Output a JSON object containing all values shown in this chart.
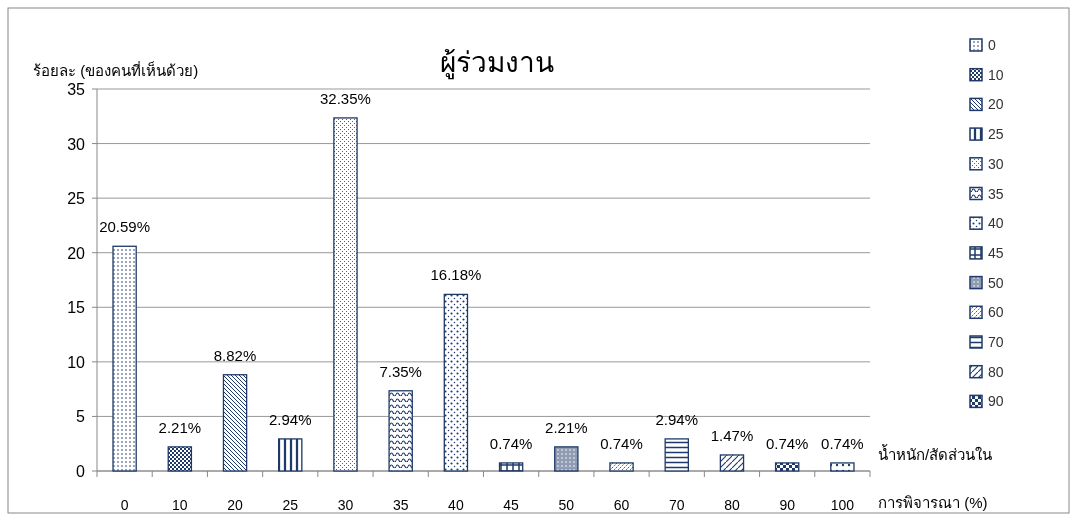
{
  "chart_data": {
    "type": "bar",
    "title": "ผู้ร่วมงาน",
    "ylabel": "ร้อยละ (ของคนที่เห็นด้วย)",
    "xlabel": "น้ำหนัก/สัดส่วนใน\nการพิจารณา (%)",
    "categories": [
      "0",
      "10",
      "20",
      "25",
      "30",
      "35",
      "40",
      "45",
      "50",
      "60",
      "70",
      "80",
      "90",
      "100"
    ],
    "ylim": [
      0,
      35
    ],
    "yticks": [
      0,
      5,
      10,
      15,
      20,
      25,
      30,
      35
    ],
    "grid": "y",
    "legend": "right",
    "series": [
      {
        "name": "0",
        "color": "#1f3a68",
        "values": [
          20.59,
          null,
          null,
          null,
          null,
          null,
          null,
          null,
          null,
          null,
          null,
          null,
          null,
          null
        ],
        "value_labels": [
          "20.59%",
          null,
          null,
          null,
          null,
          null,
          null,
          null,
          null,
          null,
          null,
          null,
          null,
          null
        ]
      },
      {
        "name": "10",
        "color": "#1f3a68",
        "values": [
          null,
          2.21,
          null,
          null,
          null,
          null,
          null,
          null,
          null,
          null,
          null,
          null,
          null,
          null
        ],
        "value_labels": [
          null,
          "2.21%",
          null,
          null,
          null,
          null,
          null,
          null,
          null,
          null,
          null,
          null,
          null,
          null
        ]
      },
      {
        "name": "20",
        "color": "#1f3a68",
        "values": [
          null,
          null,
          8.82,
          null,
          null,
          null,
          null,
          null,
          null,
          null,
          null,
          null,
          null,
          null
        ],
        "value_labels": [
          null,
          null,
          "8.82%",
          null,
          null,
          null,
          null,
          null,
          null,
          null,
          null,
          null,
          null,
          null
        ]
      },
      {
        "name": "25",
        "color": "#1f3a68",
        "values": [
          null,
          null,
          null,
          2.94,
          null,
          null,
          null,
          null,
          null,
          null,
          null,
          null,
          null,
          null
        ],
        "value_labels": [
          null,
          null,
          null,
          "2.94%",
          null,
          null,
          null,
          null,
          null,
          null,
          null,
          null,
          null,
          null
        ]
      },
      {
        "name": "30",
        "color": "#1f3a68",
        "values": [
          null,
          null,
          null,
          null,
          32.35,
          null,
          null,
          null,
          null,
          null,
          null,
          null,
          null,
          null
        ],
        "value_labels": [
          null,
          null,
          null,
          null,
          "32.35%",
          null,
          null,
          null,
          null,
          null,
          null,
          null,
          null,
          null
        ]
      },
      {
        "name": "35",
        "color": "#1f3a68",
        "values": [
          null,
          null,
          null,
          null,
          null,
          7.35,
          null,
          null,
          null,
          null,
          null,
          null,
          null,
          null
        ],
        "value_labels": [
          null,
          null,
          null,
          null,
          null,
          "7.35%",
          null,
          null,
          null,
          null,
          null,
          null,
          null,
          null
        ]
      },
      {
        "name": "40",
        "color": "#1f3a68",
        "values": [
          null,
          null,
          null,
          null,
          null,
          null,
          16.18,
          null,
          null,
          null,
          null,
          null,
          null,
          null
        ],
        "value_labels": [
          null,
          null,
          null,
          null,
          null,
          null,
          "16.18%",
          null,
          null,
          null,
          null,
          null,
          null,
          null
        ]
      },
      {
        "name": "45",
        "color": "#1f3a68",
        "values": [
          null,
          null,
          null,
          null,
          null,
          null,
          null,
          0.74,
          null,
          null,
          null,
          null,
          null,
          null
        ],
        "value_labels": [
          null,
          null,
          null,
          null,
          null,
          null,
          null,
          "0.74%",
          null,
          null,
          null,
          null,
          null,
          null
        ]
      },
      {
        "name": "50",
        "color": "#1f3a68",
        "values": [
          null,
          null,
          null,
          null,
          null,
          null,
          null,
          null,
          2.21,
          null,
          null,
          null,
          null,
          null
        ],
        "value_labels": [
          null,
          null,
          null,
          null,
          null,
          null,
          null,
          null,
          "2.21%",
          null,
          null,
          null,
          null,
          null
        ]
      },
      {
        "name": "60",
        "color": "#1f3a68",
        "values": [
          null,
          null,
          null,
          null,
          null,
          null,
          null,
          null,
          null,
          0.74,
          null,
          null,
          null,
          null
        ],
        "value_labels": [
          null,
          null,
          null,
          null,
          null,
          null,
          null,
          null,
          null,
          "0.74%",
          null,
          null,
          null,
          null
        ]
      },
      {
        "name": "70",
        "color": "#1f3a68",
        "values": [
          null,
          null,
          null,
          null,
          null,
          null,
          null,
          null,
          null,
          null,
          2.94,
          null,
          null,
          null
        ],
        "value_labels": [
          null,
          null,
          null,
          null,
          null,
          null,
          null,
          null,
          null,
          null,
          "2.94%",
          null,
          null,
          null
        ]
      },
      {
        "name": "80",
        "color": "#1f3a68",
        "values": [
          null,
          null,
          null,
          null,
          null,
          null,
          null,
          null,
          null,
          null,
          null,
          1.47,
          null,
          null
        ],
        "value_labels": [
          null,
          null,
          null,
          null,
          null,
          null,
          null,
          null,
          null,
          null,
          null,
          "1.47%",
          null,
          null
        ]
      },
      {
        "name": "90",
        "color": "#1f3a68",
        "values": [
          null,
          null,
          null,
          null,
          null,
          null,
          null,
          null,
          null,
          null,
          null,
          null,
          0.74,
          null
        ],
        "value_labels": [
          null,
          null,
          null,
          null,
          null,
          null,
          null,
          null,
          null,
          null,
          null,
          null,
          "0.74%",
          null
        ]
      },
      {
        "color": "#1f3a68",
        "values": [
          null,
          null,
          null,
          null,
          null,
          null,
          null,
          null,
          null,
          null,
          null,
          null,
          null,
          0.74
        ],
        "value_labels": [
          null,
          null,
          null,
          null,
          null,
          null,
          null,
          null,
          null,
          null,
          null,
          null,
          null,
          "0.74%"
        ]
      }
    ]
  }
}
